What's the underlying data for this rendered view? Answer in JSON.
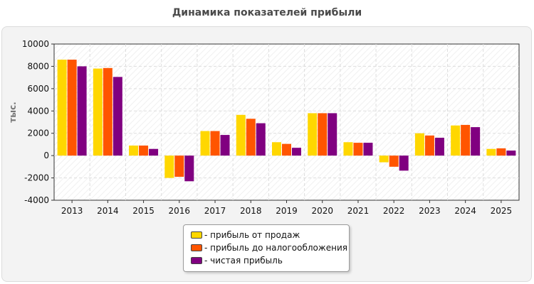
{
  "chart_data": {
    "type": "bar",
    "title": "Динамика показателей прибыли",
    "ylabel": "тыс.",
    "xlabel": "",
    "ylim": [
      -4000,
      10000
    ],
    "yticks": [
      -4000,
      -2000,
      0,
      2000,
      4000,
      6000,
      8000,
      10000
    ],
    "grid": true,
    "legend_position": "bottom",
    "categories": [
      "2013",
      "2014",
      "2015",
      "2016",
      "2017",
      "2018",
      "2019",
      "2020",
      "2021",
      "2022",
      "2023",
      "2024",
      "2025"
    ],
    "series": [
      {
        "name": "- прибыль от продаж",
        "color": "#ffd700",
        "values": [
          8600,
          7800,
          900,
          -2000,
          2200,
          3650,
          1200,
          3800,
          1200,
          -600,
          2000,
          2700,
          600
        ]
      },
      {
        "name": "- прибыль до налогообложения",
        "color": "#ff5500",
        "values": [
          8600,
          7850,
          900,
          -1900,
          2200,
          3300,
          1050,
          3800,
          1150,
          -1000,
          1800,
          2750,
          650
        ]
      },
      {
        "name": "- чистая прибыль",
        "color": "#800080",
        "values": [
          8000,
          7050,
          600,
          -2300,
          1850,
          2900,
          700,
          3800,
          1150,
          -1350,
          1600,
          2550,
          450
        ]
      }
    ]
  }
}
